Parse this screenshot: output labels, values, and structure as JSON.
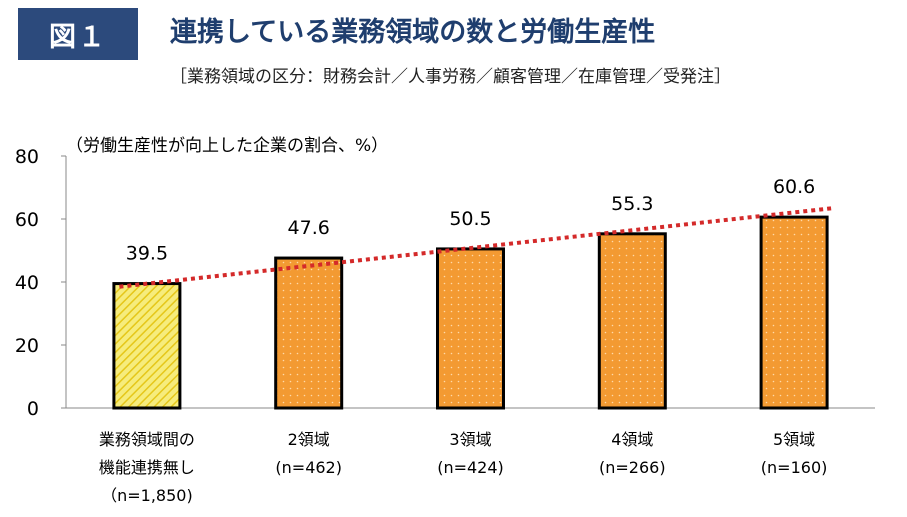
{
  "header": {
    "badge": "図１",
    "title": "連携している業務領域の数と労働生産性",
    "subtitle": "［業務領域の区分：財務会計／人事労務／顧客管理／在庫管理／受発注］"
  },
  "chart_data": {
    "type": "bar",
    "title": "連携している業務領域の数と労働生産性",
    "subtitle": "［業務領域の区分：財務会計／人事労務／顧客管理／在庫管理／受発注］",
    "ylabel": "（労働生産性が向上した企業の割合、%）",
    "ylim": [
      0,
      80
    ],
    "yticks": [
      0,
      20,
      40,
      60,
      80
    ],
    "categories": [
      [
        "業務領域間の",
        "機能連携無し",
        "（n=1,850)"
      ],
      [
        "2領域",
        "(n=462)"
      ],
      [
        "3領域",
        "(n=424)"
      ],
      [
        "4領域",
        "(n=266)"
      ],
      [
        "5領域",
        "(n=160)"
      ]
    ],
    "values": [
      39.5,
      47.6,
      50.5,
      55.3,
      60.6
    ],
    "value_labels": [
      "39.5",
      "47.6",
      "50.5",
      "55.3",
      "60.6"
    ],
    "trendline": {
      "style": "dotted",
      "color": "#d42a2a",
      "start": 38.5,
      "end": 63.5
    },
    "colors": {
      "baseline_bar": "#f0e13c",
      "bar": "#f39a32",
      "outline": "#000000",
      "trend": "#d42a2a"
    },
    "grid": false,
    "legend": "none"
  }
}
